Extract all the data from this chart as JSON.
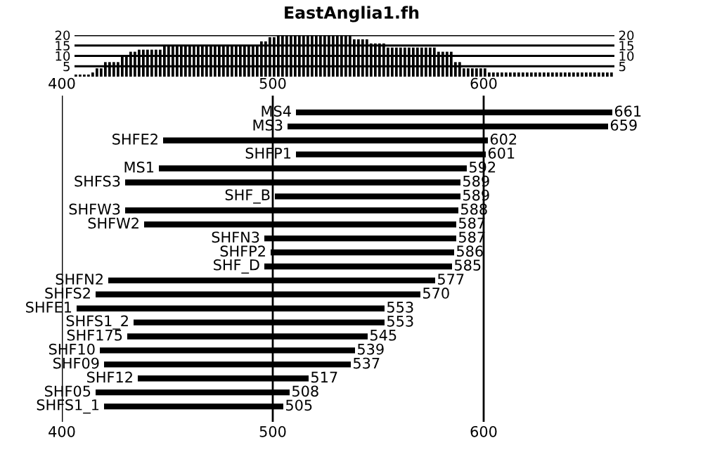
{
  "chart_data": [
    {
      "type": "bar",
      "title": "EastAnglia1.fh",
      "color": "#000000",
      "categories": [
        null,
        null,
        null,
        null,
        null,
        null,
        null,
        null,
        null,
        null,
        null,
        null,
        null,
        null,
        null,
        null,
        null,
        null,
        null,
        null,
        null,
        null,
        null,
        null,
        null,
        null,
        null,
        null,
        null,
        null,
        null,
        null,
        null,
        null,
        null,
        null,
        null,
        null,
        null,
        null,
        null,
        null,
        null,
        null,
        null,
        null,
        null,
        null,
        null,
        null,
        null,
        null,
        null,
        null,
        null,
        null,
        null,
        null,
        null,
        null,
        null,
        null,
        null,
        null,
        null,
        null,
        null,
        null,
        null,
        null,
        null,
        null,
        null,
        null,
        null,
        null,
        null,
        null,
        null,
        null,
        null,
        null,
        null,
        null,
        null,
        null,
        null,
        null,
        null,
        null,
        null,
        null,
        null,
        null,
        null,
        null,
        null,
        null,
        null,
        null,
        null,
        null,
        null,
        null,
        null,
        null,
        null,
        null,
        null,
        null,
        null,
        null,
        null,
        null,
        null,
        null,
        null,
        null,
        null,
        null,
        null,
        null,
        null,
        null,
        null,
        null,
        null,
        null
      ],
      "values": [
        1,
        1,
        1,
        1,
        2,
        4,
        4,
        7,
        7,
        7,
        7,
        10,
        10,
        12,
        12,
        13,
        13,
        13,
        13,
        13,
        13,
        15,
        15,
        15,
        15,
        15,
        15,
        15,
        15,
        15,
        15,
        15,
        15,
        15,
        15,
        15,
        15,
        15,
        15,
        15,
        15,
        15,
        15,
        15,
        17,
        17,
        19,
        19,
        20,
        20,
        20,
        20,
        20,
        20,
        20,
        20,
        20,
        20,
        20,
        20,
        20,
        20,
        20,
        20,
        20,
        20,
        18,
        18,
        18,
        18,
        16,
        16,
        16,
        16,
        14,
        14,
        14,
        14,
        14,
        14,
        14,
        14,
        14,
        14,
        14,
        14,
        12,
        12,
        12,
        12,
        7,
        7,
        4,
        4,
        4,
        4,
        4,
        4,
        2,
        2,
        2,
        2,
        2,
        2,
        2,
        2,
        2,
        2,
        2,
        2,
        2,
        2,
        2,
        2,
        2,
        2,
        2,
        2,
        2,
        2,
        2,
        2,
        2,
        2,
        2,
        2,
        2,
        2
      ],
      "ylim": [
        0,
        20
      ],
      "yticks": [
        5,
        10,
        15,
        20
      ],
      "y2lim": [
        0,
        20
      ],
      "y2ticks": [
        5,
        10,
        15,
        20
      ],
      "grid": "y",
      "tick_labels": "y"
    },
    {
      "type": "bar",
      "orientation": "horizontal",
      "color": "#000000",
      "categories": [
        "MS4",
        "MS3",
        "SHFE2",
        "SHFP1",
        "MS1",
        "SHFS3",
        "SHF_B",
        "SHFW3",
        "SHFW2",
        "SHFN3",
        "SHFP2",
        "SHF_D",
        "SHFN2",
        "SHFS2",
        "SHFE1",
        "SHFS1_2",
        "SHF175",
        "SHF10",
        "SHF09",
        "SHF12",
        "SHF05",
        "SHFS1_1"
      ],
      "base": [
        511,
        507,
        448,
        511,
        446,
        430,
        501,
        430,
        439,
        496,
        499,
        496,
        422,
        416,
        407,
        434,
        431,
        418,
        420,
        436,
        416,
        420
      ],
      "values": [
        150,
        152,
        154,
        90,
        146,
        159,
        88,
        158,
        148,
        91,
        87,
        89,
        155,
        154,
        146,
        119,
        114,
        121,
        117,
        81,
        92,
        85
      ],
      "value_labels": [
        "661",
        "659",
        "602",
        "601",
        "592",
        "589",
        "589",
        "588",
        "587",
        "587",
        "586",
        "585",
        "577",
        "570",
        "553",
        "553",
        "545",
        "539",
        "537",
        "517",
        "508",
        "505"
      ],
      "xlim": [
        400,
        661
      ],
      "xticks": [
        400,
        500,
        600
      ],
      "x2lim": [
        400,
        661
      ],
      "x2ticks": [
        400,
        500,
        600
      ],
      "grid": "x"
    }
  ]
}
